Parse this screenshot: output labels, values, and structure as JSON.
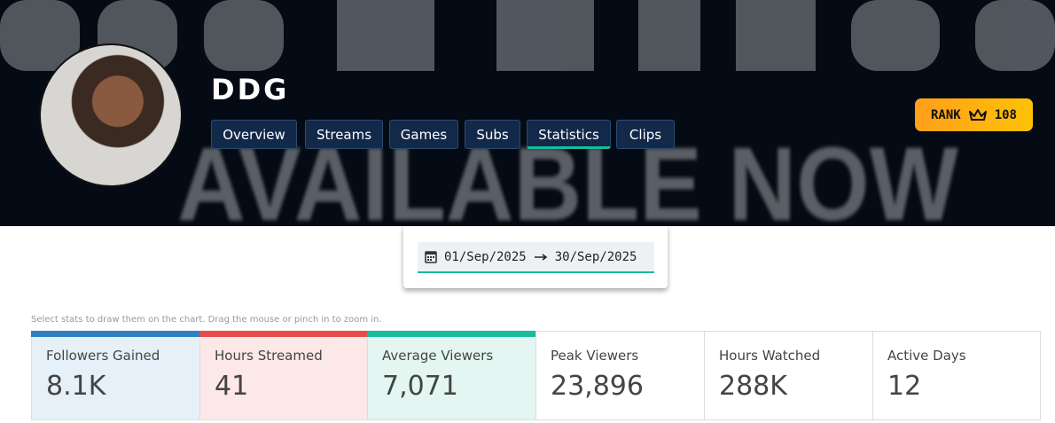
{
  "banner": {
    "text": "AVAILABLE NOW"
  },
  "profile": {
    "name": "DDG",
    "rank_label": "RANK",
    "rank": "108"
  },
  "tabs": [
    "Overview",
    "Streams",
    "Games",
    "Subs",
    "Statistics",
    "Clips"
  ],
  "active_tab": 4,
  "date_range": {
    "start": "01/Sep/2025",
    "end": "30/Sep/2025"
  },
  "hint": "Select stats to draw them on the chart. Drag the mouse or pinch in to zoom in.",
  "stats": [
    {
      "label": "Followers Gained",
      "value": "8.1K",
      "color": "#2f7fc1",
      "bg": "#e6f0f8"
    },
    {
      "label": "Hours Streamed",
      "value": "41",
      "color": "#e74c4c",
      "bg": "#fde8e8"
    },
    {
      "label": "Average Viewers",
      "value": "7,071",
      "color": "#1abc9c",
      "bg": "#e3f6f1"
    },
    {
      "label": "Peak Viewers",
      "value": "23,896",
      "color": null,
      "bg": null
    },
    {
      "label": "Hours Watched",
      "value": "288K",
      "color": null,
      "bg": null
    },
    {
      "label": "Active Days",
      "value": "12",
      "color": null,
      "bg": null
    }
  ]
}
